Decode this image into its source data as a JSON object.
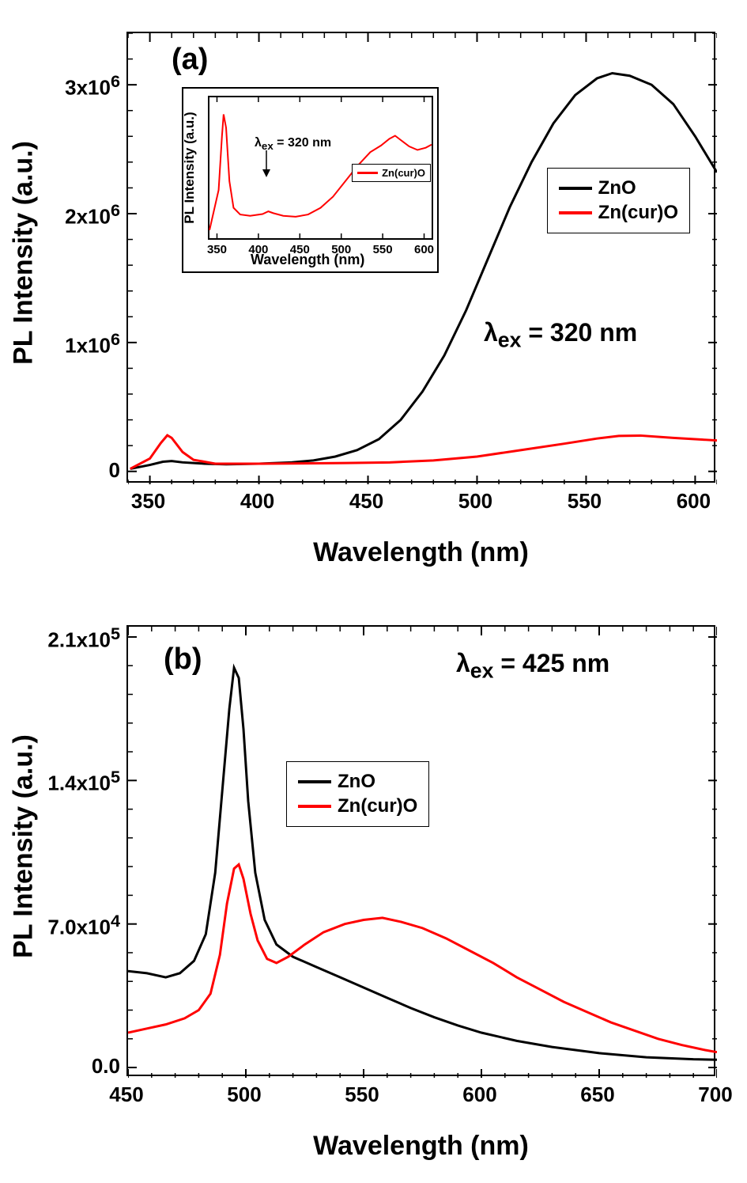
{
  "chart_a": {
    "type": "line",
    "panel_label": "(a)",
    "x_label": "Wavelength (nm)",
    "y_label": "PL Intensity (a.u.)",
    "lambda_text": "λ",
    "lambda_sub": "ex",
    "lambda_value": " = 320 nm",
    "xlim": [
      340,
      610
    ],
    "ylim": [
      -100000,
      3400000
    ],
    "x_ticks": [
      350,
      400,
      450,
      500,
      550,
      600
    ],
    "x_tick_labels": [
      "350",
      "400",
      "450",
      "500",
      "550",
      "600"
    ],
    "y_ticks": [
      0,
      1000000,
      2000000,
      3000000
    ],
    "y_tick_labels": [
      "0",
      "1x10⁶",
      "2x10⁶",
      "3x10⁶"
    ],
    "x_minor_step": 10,
    "y_minor_step": 200000,
    "colors": {
      "ZnO": "#000000",
      "ZncurO": "#ff0000"
    },
    "line_width": 3,
    "legend": {
      "items": [
        "ZnO",
        "Zn(cur)O"
      ],
      "colors": [
        "#000000",
        "#ff0000"
      ]
    },
    "series_ZnO": [
      [
        341,
        20000
      ],
      [
        350,
        50000
      ],
      [
        356,
        75000
      ],
      [
        360,
        80000
      ],
      [
        365,
        70000
      ],
      [
        375,
        60000
      ],
      [
        385,
        55000
      ],
      [
        400,
        60000
      ],
      [
        415,
        70000
      ],
      [
        425,
        85000
      ],
      [
        435,
        115000
      ],
      [
        445,
        165000
      ],
      [
        455,
        250000
      ],
      [
        465,
        400000
      ],
      [
        475,
        620000
      ],
      [
        485,
        900000
      ],
      [
        495,
        1250000
      ],
      [
        505,
        1650000
      ],
      [
        515,
        2050000
      ],
      [
        525,
        2400000
      ],
      [
        535,
        2700000
      ],
      [
        545,
        2920000
      ],
      [
        555,
        3050000
      ],
      [
        562,
        3090000
      ],
      [
        570,
        3070000
      ],
      [
        580,
        3000000
      ],
      [
        590,
        2850000
      ],
      [
        600,
        2600000
      ],
      [
        610,
        2320000
      ]
    ],
    "series_ZncurO": [
      [
        341,
        20000
      ],
      [
        350,
        100000
      ],
      [
        355,
        220000
      ],
      [
        358,
        280000
      ],
      [
        360,
        260000
      ],
      [
        365,
        150000
      ],
      [
        370,
        90000
      ],
      [
        380,
        60000
      ],
      [
        400,
        60000
      ],
      [
        420,
        62000
      ],
      [
        440,
        65000
      ],
      [
        460,
        70000
      ],
      [
        480,
        85000
      ],
      [
        500,
        115000
      ],
      [
        520,
        165000
      ],
      [
        540,
        215000
      ],
      [
        555,
        255000
      ],
      [
        565,
        275000
      ],
      [
        575,
        278000
      ],
      [
        590,
        260000
      ],
      [
        605,
        245000
      ],
      [
        610,
        240000
      ]
    ],
    "inset": {
      "type": "line",
      "x_label": "Wavelength (nm)",
      "y_label": "PL Intensity (a.u.)",
      "lambda_text": "λ",
      "lambda_sub": "ex",
      "lambda_value": " = 320 nm",
      "xlim": [
        340,
        610
      ],
      "ylim": [
        0,
        320000
      ],
      "x_ticks": [
        350,
        400,
        450,
        500,
        550,
        600
      ],
      "x_tick_labels": [
        "350",
        "400",
        "450",
        "500",
        "550",
        "600"
      ],
      "legend_label": "Zn(cur)O",
      "legend_color": "#ff0000",
      "color": "#ff0000",
      "line_width": 2,
      "series": [
        [
          341,
          20000
        ],
        [
          352,
          110000
        ],
        [
          356,
          230000
        ],
        [
          358,
          280000
        ],
        [
          361,
          250000
        ],
        [
          365,
          130000
        ],
        [
          370,
          70000
        ],
        [
          378,
          55000
        ],
        [
          390,
          52000
        ],
        [
          405,
          56000
        ],
        [
          412,
          62000
        ],
        [
          418,
          58000
        ],
        [
          430,
          52000
        ],
        [
          445,
          50000
        ],
        [
          460,
          55000
        ],
        [
          475,
          70000
        ],
        [
          490,
          95000
        ],
        [
          505,
          130000
        ],
        [
          520,
          165000
        ],
        [
          535,
          195000
        ],
        [
          548,
          210000
        ],
        [
          558,
          225000
        ],
        [
          565,
          232000
        ],
        [
          572,
          222000
        ],
        [
          582,
          208000
        ],
        [
          592,
          200000
        ],
        [
          602,
          205000
        ],
        [
          609,
          212000
        ]
      ]
    }
  },
  "chart_b": {
    "type": "line",
    "panel_label": "(b)",
    "x_label": "Wavelength (nm)",
    "y_label": "PL Intensity (a.u.)",
    "lambda_text": "λ",
    "lambda_sub": "ex",
    "lambda_value": " = 425 nm",
    "xlim": [
      450,
      700
    ],
    "ylim": [
      -5000,
      215000
    ],
    "x_ticks": [
      450,
      500,
      550,
      600,
      650,
      700
    ],
    "x_tick_labels": [
      "450",
      "500",
      "550",
      "600",
      "650",
      "700"
    ],
    "y_ticks": [
      0,
      70000,
      140000,
      210000
    ],
    "y_tick_labels": [
      "0.0",
      "7.0x10⁴",
      "1.4x10⁵",
      "2.1x10⁵"
    ],
    "x_minor_step": 10,
    "y_minor_step": 14000,
    "colors": {
      "ZnO": "#000000",
      "ZncurO": "#ff0000"
    },
    "line_width": 3,
    "legend": {
      "items": [
        "ZnO",
        "Zn(cur)O"
      ],
      "colors": [
        "#000000",
        "#ff0000"
      ]
    },
    "series_ZnO": [
      [
        450,
        47000
      ],
      [
        458,
        46000
      ],
      [
        466,
        44000
      ],
      [
        472,
        46000
      ],
      [
        478,
        52000
      ],
      [
        483,
        65000
      ],
      [
        487,
        95000
      ],
      [
        490,
        135000
      ],
      [
        493,
        175000
      ],
      [
        495,
        195000
      ],
      [
        497,
        190000
      ],
      [
        499,
        165000
      ],
      [
        501,
        130000
      ],
      [
        504,
        95000
      ],
      [
        508,
        72000
      ],
      [
        513,
        60000
      ],
      [
        520,
        54000
      ],
      [
        530,
        49000
      ],
      [
        540,
        44000
      ],
      [
        550,
        39000
      ],
      [
        560,
        34000
      ],
      [
        570,
        29000
      ],
      [
        580,
        24500
      ],
      [
        590,
        20500
      ],
      [
        600,
        17000
      ],
      [
        615,
        13000
      ],
      [
        630,
        10000
      ],
      [
        650,
        7000
      ],
      [
        670,
        5000
      ],
      [
        690,
        4000
      ],
      [
        700,
        3800
      ]
    ],
    "series_ZncurO": [
      [
        450,
        17000
      ],
      [
        458,
        19000
      ],
      [
        466,
        21000
      ],
      [
        474,
        24000
      ],
      [
        480,
        28000
      ],
      [
        485,
        36000
      ],
      [
        489,
        55000
      ],
      [
        492,
        80000
      ],
      [
        495,
        97000
      ],
      [
        497,
        99000
      ],
      [
        499,
        92000
      ],
      [
        502,
        75000
      ],
      [
        505,
        62000
      ],
      [
        509,
        53000
      ],
      [
        513,
        51000
      ],
      [
        518,
        54000
      ],
      [
        525,
        60000
      ],
      [
        533,
        66000
      ],
      [
        542,
        70000
      ],
      [
        550,
        72000
      ],
      [
        558,
        73000
      ],
      [
        566,
        71000
      ],
      [
        575,
        68000
      ],
      [
        585,
        63000
      ],
      [
        595,
        57000
      ],
      [
        605,
        51000
      ],
      [
        615,
        44000
      ],
      [
        625,
        38000
      ],
      [
        635,
        32000
      ],
      [
        645,
        27000
      ],
      [
        655,
        22000
      ],
      [
        665,
        18000
      ],
      [
        675,
        14000
      ],
      [
        685,
        11000
      ],
      [
        695,
        8500
      ],
      [
        700,
        7500
      ]
    ]
  }
}
